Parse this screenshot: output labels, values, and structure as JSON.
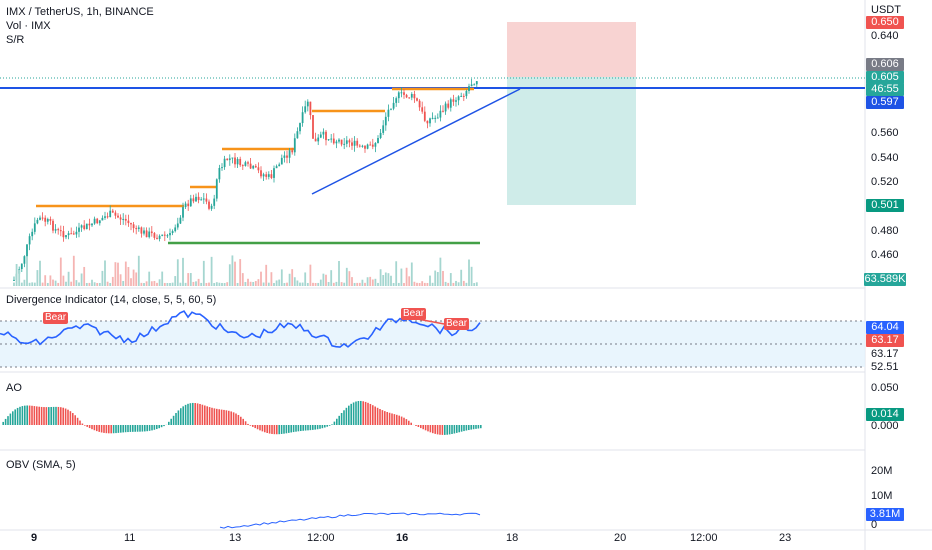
{
  "header": {
    "title": "IMX / TetherUS, 1h, BINANCE",
    "volume_label": "Vol · IMX",
    "sr_label": "S/R"
  },
  "price_axis": {
    "currency": "USDT",
    "ticks": [
      "0.640",
      "0.560",
      "0.540",
      "0.520",
      "0.480",
      "0.460"
    ],
    "tags": {
      "stop": "0.650",
      "current": "0.606",
      "close": "0.605",
      "countdown": "46:55",
      "line": "0.597",
      "target": "0.501",
      "volume": "63.589K"
    }
  },
  "divergence": {
    "title": "Divergence Indicator (14, close, 5, 5, 60, 5)",
    "value_a": "64.04",
    "value_b": "63.17",
    "tick_a": "63.17",
    "tick_b": "52.51",
    "bear_labels": [
      "Bear",
      "Bear",
      "Bear"
    ]
  },
  "ao": {
    "title": "AO",
    "tick_top": "0.050",
    "value": "0.014",
    "tick_zero": "0.000"
  },
  "obv": {
    "title": "OBV (SMA, 5)",
    "tick_20m": "20M",
    "tick_10m": "10M",
    "value": "3.81M",
    "tick_0": "0"
  },
  "time_axis": [
    "9",
    "11",
    "13",
    "12:00",
    "16",
    "18",
    "20",
    "12:00",
    "23"
  ],
  "colors": {
    "up": "#26a69a",
    "down": "#ef5350",
    "resistance": "#f7931a",
    "support": "#43a047",
    "trend": "#1e53e5",
    "rsi": "#2962ff",
    "obv": "#2962ff"
  }
}
